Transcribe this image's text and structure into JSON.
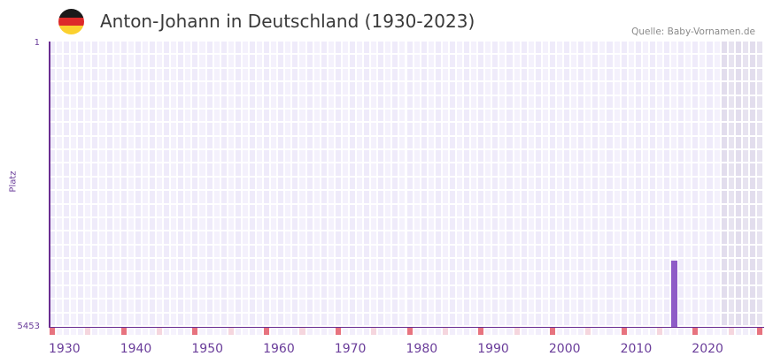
{
  "header": {
    "title": "Anton-Johann in Deutschland (1930-2023)",
    "source": "Quelle: Baby-Vornamen.de",
    "flag_colors": [
      "#1a1a1a",
      "#dd2a2a",
      "#fbd12f"
    ]
  },
  "colors": {
    "axis": "#6a2c91",
    "bar": "#8e5bc7",
    "grid_a": "#efebfa",
    "grid_b": "#f4f1fc",
    "grid_future_a": "#e2dded",
    "grid_future_b": "#e7e3f0",
    "decade_marker": "#e7737f",
    "half_decade_marker": "#f5d6de",
    "tick_text": "#6a3d9a"
  },
  "chart_data": {
    "type": "bar",
    "title": "Anton-Johann in Deutschland (1930-2023)",
    "xlabel": "",
    "ylabel": "Platz",
    "y_axis_inverted": true,
    "ylim": [
      5453,
      1
    ],
    "yticks": [
      "1",
      "5453"
    ],
    "xlim": [
      1930,
      2029
    ],
    "xticks": [
      "1930",
      "1940",
      "1950",
      "1960",
      "1970",
      "1980",
      "1990",
      "2000",
      "2010",
      "2020"
    ],
    "shaded_future_from": 2024,
    "grid": true,
    "legend": null,
    "series": [
      {
        "name": "Anton-Johann",
        "points": [
          {
            "year": 2017,
            "rank": 4190
          }
        ]
      }
    ],
    "decade_markers": [
      1930,
      1940,
      1950,
      1960,
      1970,
      1980,
      1990,
      2000,
      2010,
      2020,
      2029
    ],
    "half_decade_markers": [
      1935,
      1945,
      1955,
      1965,
      1975,
      1985,
      1995,
      2005,
      2015,
      2025
    ]
  }
}
